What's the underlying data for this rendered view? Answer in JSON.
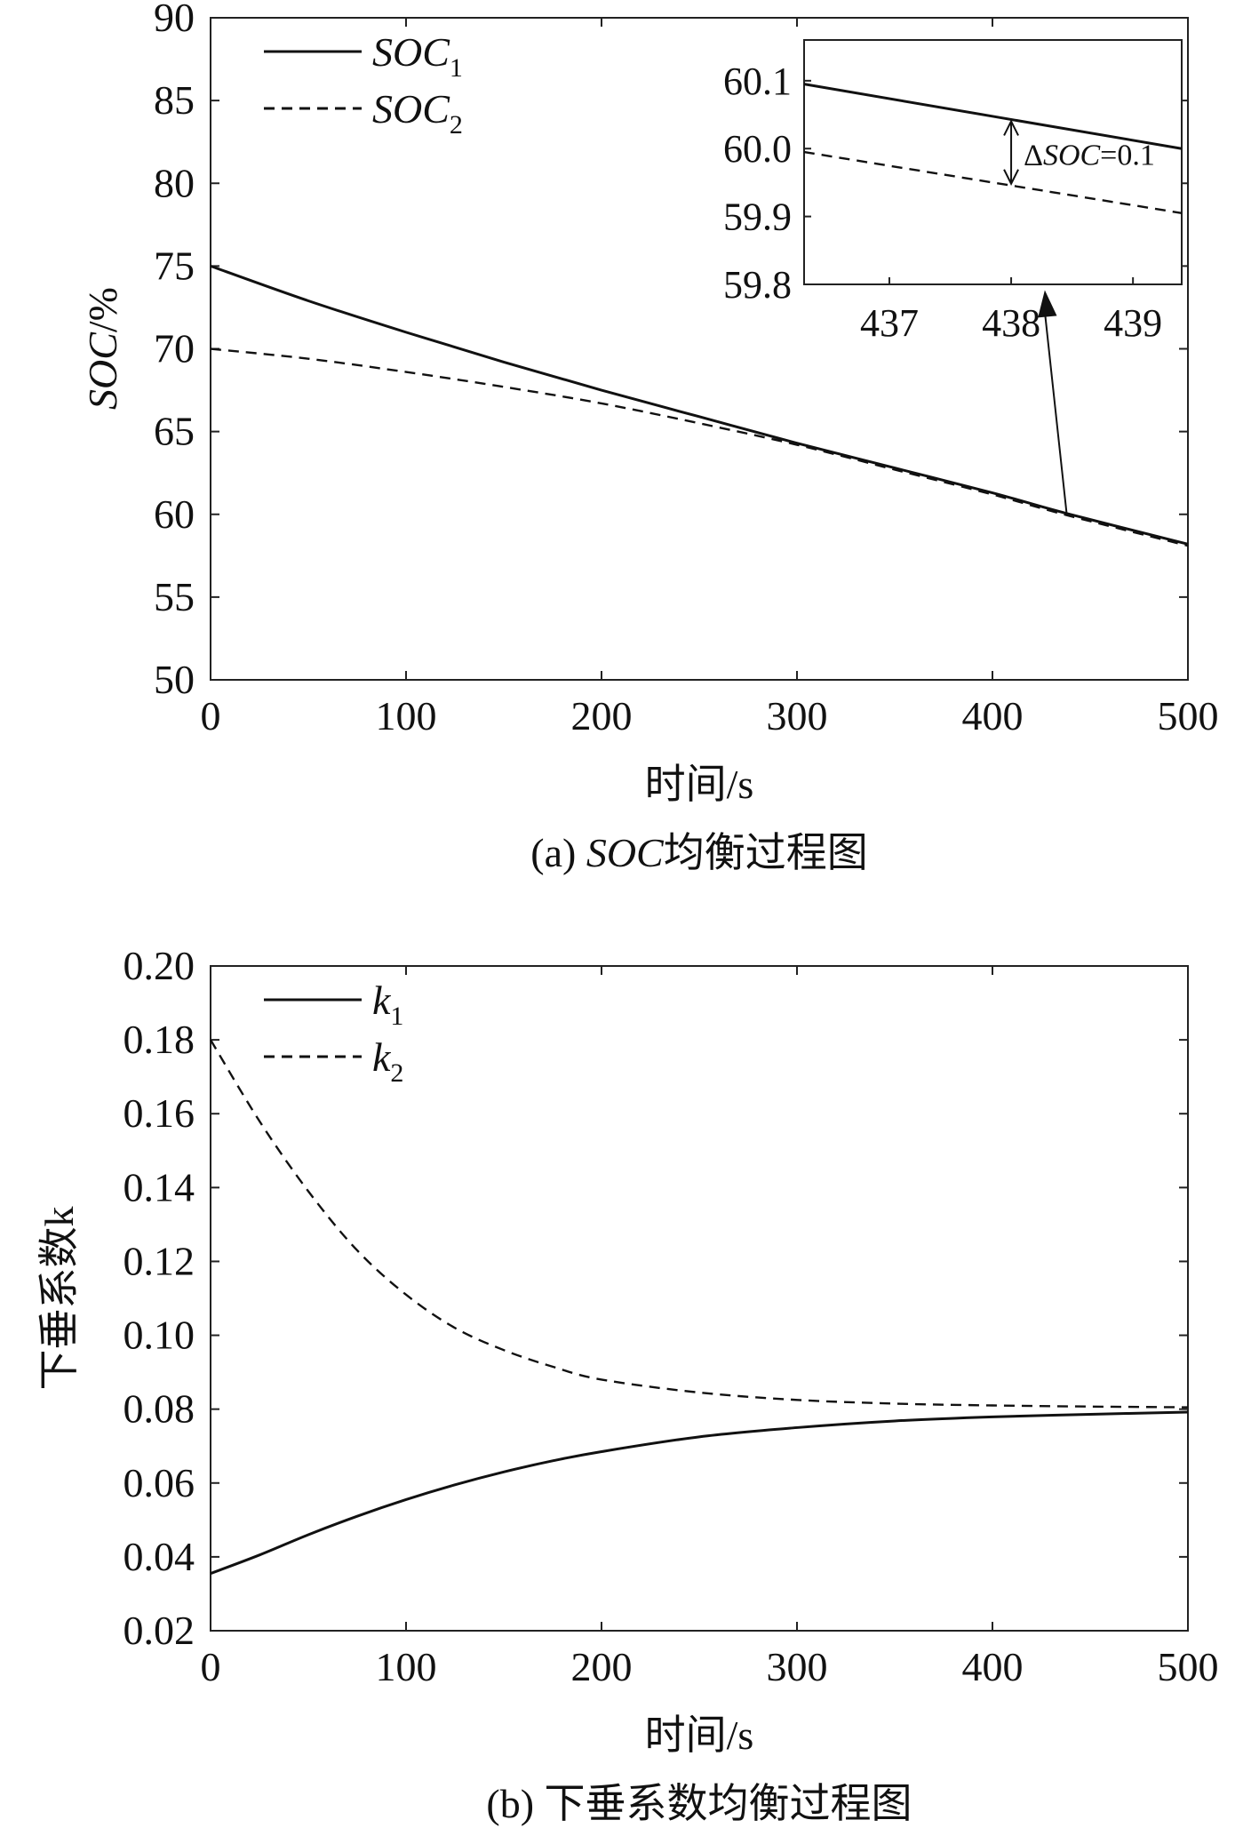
{
  "chart_data": [
    {
      "type": "line",
      "caption": "(a) SOC均衡过程图",
      "caption_prefix": "(a) ",
      "caption_italic": "SOC",
      "caption_suffix": "均衡过程图",
      "xlabel": "时间/s",
      "ylabel": "SOC/%",
      "ylabel_italic": "SOC",
      "ylabel_suffix": "/%",
      "xlim": [
        0,
        500
      ],
      "ylim": [
        50,
        90
      ],
      "xticks": [
        0,
        100,
        200,
        300,
        400,
        500
      ],
      "yticks": [
        50,
        55,
        60,
        65,
        70,
        75,
        80,
        85,
        90
      ],
      "grid": false,
      "legend_position": "top-left",
      "series": [
        {
          "name": "SOC1",
          "legend_main": "SOC",
          "legend_sub": "1",
          "style": "solid",
          "x": [
            0,
            50,
            100,
            150,
            200,
            250,
            300,
            350,
            400,
            438,
            500
          ],
          "y": [
            75.0,
            72.9,
            71.0,
            69.2,
            67.5,
            65.9,
            64.3,
            62.8,
            61.3,
            60.05,
            58.2
          ]
        },
        {
          "name": "SOC2",
          "legend_main": "SOC",
          "legend_sub": "2",
          "style": "dashed",
          "x": [
            0,
            50,
            100,
            150,
            200,
            250,
            300,
            350,
            400,
            438,
            500
          ],
          "y": [
            70.0,
            69.4,
            68.6,
            67.7,
            66.7,
            65.5,
            64.2,
            62.7,
            61.2,
            59.95,
            58.1
          ]
        }
      ],
      "inset": {
        "xlim": [
          436.3,
          439.4
        ],
        "ylim": [
          59.8,
          60.16
        ],
        "xticks": [
          437,
          438,
          439
        ],
        "yticks": [
          "59.8",
          "59.9",
          "60.0",
          "60.1"
        ],
        "series": [
          {
            "name": "SOC1",
            "style": "solid",
            "x": [
              436.3,
              439.4
            ],
            "y": [
              60.095,
              60.0
            ]
          },
          {
            "name": "SOC2",
            "style": "dashed",
            "x": [
              436.3,
              439.4
            ],
            "y": [
              59.995,
              59.905
            ]
          }
        ],
        "annotation_x": 438,
        "annotation_label": "ΔSOC=0.1",
        "annotation_delta": "Δ",
        "annotation_italic": "SOC",
        "annotation_value": "=0.1",
        "source_point": [
          438,
          60.0
        ]
      }
    },
    {
      "type": "line",
      "caption": "(b) 下垂系数均衡过程图",
      "xlabel": "时间/s",
      "ylabel": "下垂系数k",
      "xlim": [
        0,
        500
      ],
      "ylim": [
        0.02,
        0.2
      ],
      "xticks": [
        0,
        100,
        200,
        300,
        400,
        500
      ],
      "yticks": [
        "0.02",
        "0.04",
        "0.06",
        "0.08",
        "0.10",
        "0.12",
        "0.14",
        "0.16",
        "0.18",
        "0.20"
      ],
      "grid": false,
      "legend_position": "top-left",
      "series": [
        {
          "name": "k1",
          "legend_main": "k",
          "legend_sub": "1",
          "style": "solid",
          "x": [
            0,
            25,
            50,
            75,
            100,
            125,
            150,
            175,
            200,
            250,
            300,
            350,
            400,
            450,
            500
          ],
          "y": [
            0.0355,
            0.0405,
            0.046,
            0.051,
            0.0555,
            0.0595,
            0.063,
            0.066,
            0.0685,
            0.0725,
            0.075,
            0.0768,
            0.0779,
            0.0786,
            0.0792
          ]
        },
        {
          "name": "k2",
          "legend_main": "k",
          "legend_sub": "2",
          "style": "dashed",
          "x": [
            0,
            25,
            50,
            75,
            100,
            125,
            150,
            175,
            200,
            250,
            300,
            350,
            400,
            450,
            500
          ],
          "y": [
            0.18,
            0.158,
            0.139,
            0.123,
            0.111,
            0.102,
            0.096,
            0.0915,
            0.088,
            0.0845,
            0.0825,
            0.0815,
            0.081,
            0.0807,
            0.0805
          ]
        }
      ]
    }
  ]
}
